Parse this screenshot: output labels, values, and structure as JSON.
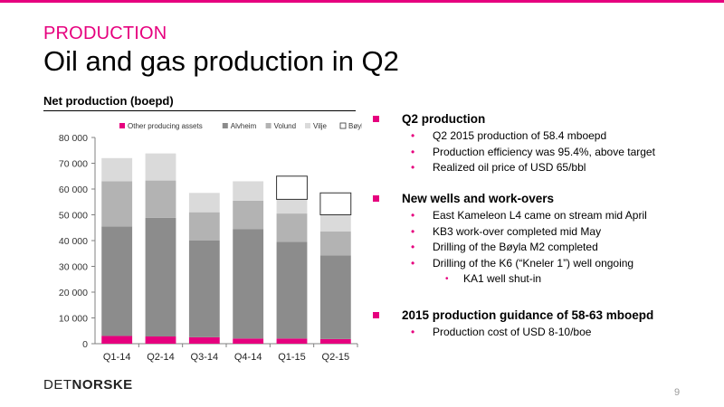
{
  "header": {
    "kicker": "PRODUCTION",
    "title": "Oil and gas production in Q2"
  },
  "chart_heading": "Net production (boepd)",
  "colors": {
    "accent": "#e6007e",
    "other": "#e6007e",
    "alvheim": "#8c8c8c",
    "volund": "#b3b3b3",
    "vilje": "#dadada",
    "boyla": "#ffffff"
  },
  "chart_data": {
    "type": "bar",
    "stacked": true,
    "categories": [
      "Q1-14",
      "Q2-14",
      "Q3-14",
      "Q4-14",
      "Q1-15",
      "Q2-15"
    ],
    "ylim": [
      0,
      80000
    ],
    "yticks": [
      "0",
      "10 000",
      "20 000",
      "30 000",
      "40 000",
      "50 000",
      "60 000",
      "70 000",
      "80 000"
    ],
    "legend_position": "top",
    "series": [
      {
        "name": "Other producing assets",
        "values": [
          3000,
          2800,
          2500,
          2000,
          2000,
          1800
        ]
      },
      {
        "name": "Alvheim",
        "values": [
          42500,
          46000,
          37500,
          42500,
          37500,
          32500
        ]
      },
      {
        "name": "Volund",
        "values": [
          17500,
          14500,
          11000,
          11000,
          11000,
          9200
        ]
      },
      {
        "name": "Vilje",
        "values": [
          9000,
          10500,
          7500,
          7500,
          5500,
          6500
        ]
      },
      {
        "name": "Bøyla",
        "values": [
          0,
          0,
          0,
          0,
          9000,
          8500
        ]
      }
    ]
  },
  "sections": [
    {
      "heading": "Q2 production",
      "items": [
        {
          "text": "Q2 2015 production of 58.4 mboepd"
        },
        {
          "text": "Production efficiency was 95.4%, above target"
        },
        {
          "text": "Realized oil price of USD 65/bbl"
        }
      ]
    },
    {
      "heading": "New wells and work-overs",
      "items": [
        {
          "text": "East Kameleon L4 came on stream mid April"
        },
        {
          "text": "KB3 work-over completed mid May"
        },
        {
          "text": "Drilling of the Bøyla M2 completed"
        },
        {
          "text": "Drilling of the K6 (“Kneler 1”) well ongoing"
        }
      ],
      "subitems": [
        {
          "text": "KA1 well shut-in"
        }
      ]
    },
    {
      "heading": "2015 production guidance of 58-63 mboepd",
      "items": [
        {
          "text": "Production cost of USD 8-10/boe"
        }
      ]
    }
  ],
  "footer": {
    "logo_thin": "DET",
    "logo_bold": "NORSKE",
    "page_number": "9"
  }
}
